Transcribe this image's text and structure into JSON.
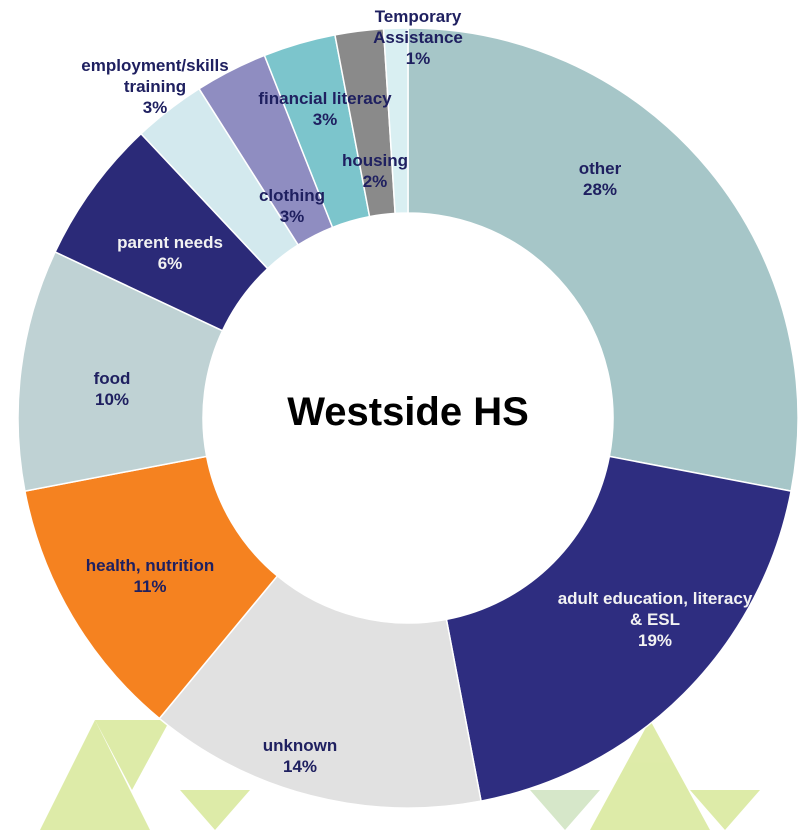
{
  "chart_data": {
    "type": "donut",
    "center_label": "Westside HS",
    "categories": [
      "other",
      "adult education, literacy & ESL",
      "unknown",
      "health, nutrition",
      "food",
      "parent needs",
      "employment/skills training",
      "clothing",
      "financial literacy",
      "housing",
      "Temporary Assistance"
    ],
    "values": [
      28,
      19,
      14,
      11,
      10,
      6,
      3,
      3,
      3,
      2,
      1
    ],
    "value_labels": [
      "28%",
      "19%",
      "14%",
      "11%",
      "10%",
      "6%",
      "3%",
      "3%",
      "3%",
      "2%",
      "1%"
    ],
    "colors": [
      "#a6c6c8",
      "#2e2d80",
      "#e1e1e1",
      "#f58220",
      "#bfd2d4",
      "#2b2a78",
      "#d3e9ee",
      "#8f8dc1",
      "#7cc5cc",
      "#8a8a8a",
      "#d9eff2"
    ]
  }
}
